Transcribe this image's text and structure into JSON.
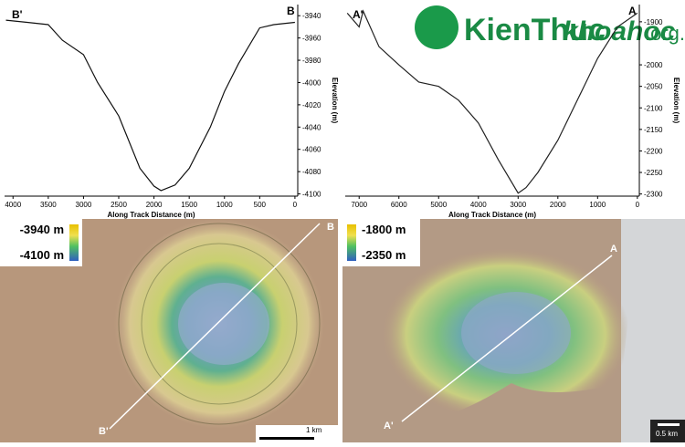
{
  "chart_data": [
    {
      "type": "line",
      "x_label": "Along Track Distance (m)",
      "y_label": "Elevation (m)",
      "start_label": "B'",
      "end_label": "B",
      "x": [
        4100,
        3800,
        3500,
        3300,
        3000,
        2800,
        2500,
        2200,
        2000,
        1900,
        1700,
        1500,
        1200,
        1000,
        800,
        500,
        300,
        0
      ],
      "series": [
        {
          "color": "#111111",
          "values": [
            -3944,
            -3946,
            -3948,
            -3962,
            -3975,
            -4000,
            -4030,
            -4077,
            -4093,
            -4097,
            -4092,
            -4077,
            -4040,
            -4008,
            -3983,
            -3951,
            -3948,
            -3946
          ]
        }
      ],
      "xlim": [
        4120,
        -40
      ],
      "ylim": [
        -3930,
        -4102
      ],
      "xticks": [
        4000,
        3500,
        3000,
        2500,
        2000,
        1500,
        1000,
        500,
        0
      ],
      "yticks": [
        -3940,
        -3960,
        -3980,
        -4000,
        -4020,
        -4040,
        -4060,
        -4080,
        -4100
      ]
    },
    {
      "type": "line",
      "x_label": "Along Track Distance (m)",
      "y_label": "Elevation (m)",
      "start_label": "A'",
      "end_label": "A",
      "x": [
        7300,
        7000,
        6900,
        6500,
        6000,
        5500,
        5000,
        4500,
        4000,
        3500,
        3000,
        2800,
        2500,
        2000,
        1500,
        1000,
        500,
        0
      ],
      "series": [
        {
          "color": "#222222",
          "values": [
            -1880,
            -1912,
            -1875,
            -1958,
            -2000,
            -2040,
            -2050,
            -2082,
            -2135,
            -2220,
            -2298,
            -2285,
            -2250,
            -2175,
            -2080,
            -1985,
            -1912,
            -1880
          ]
        }
      ],
      "xlim": [
        7350,
        -50
      ],
      "ylim": [
        -1860,
        -2305
      ],
      "xticks": [
        7000,
        6000,
        5000,
        4000,
        3000,
        2000,
        1000,
        0
      ],
      "yticks": [
        -1900,
        -2000,
        -2050,
        -2100,
        -2150,
        -2200,
        -2250,
        -2300
      ]
    }
  ],
  "panels": [
    {
      "legend_top": "-3940 m",
      "legend_bottom": "-4100 m",
      "start": "B'",
      "end": "B",
      "scale": "1 km"
    },
    {
      "legend_top": "-1800 m",
      "legend_bottom": "-2350 m",
      "start": "A'",
      "end": "A",
      "scale": "0.5 km"
    }
  ],
  "watermark": {
    "brand": "KienThuc",
    "site": "khoahoc",
    "suffix": ".org.vn"
  }
}
